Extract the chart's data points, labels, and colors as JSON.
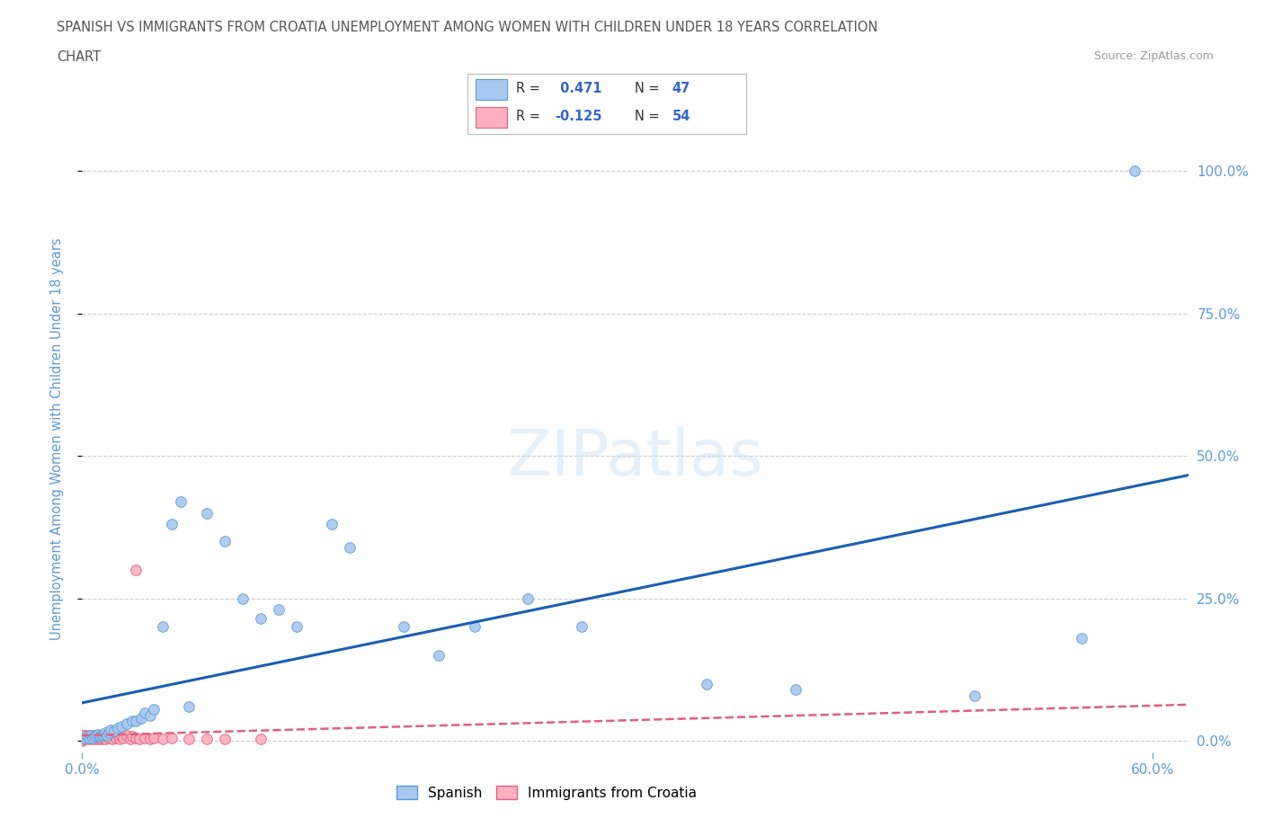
{
  "title_line1": "SPANISH VS IMMIGRANTS FROM CROATIA UNEMPLOYMENT AMONG WOMEN WITH CHILDREN UNDER 18 YEARS CORRELATION",
  "title_line2": "CHART",
  "source": "Source: ZipAtlas.com",
  "ylabel": "Unemployment Among Women with Children Under 18 years",
  "ytick_values": [
    0.0,
    0.25,
    0.5,
    0.75,
    1.0
  ],
  "ytick_labels": [
    "0.0%",
    "25.0%",
    "50.0%",
    "75.0%",
    "100.0%"
  ],
  "xlim": [
    0.0,
    0.62
  ],
  "ylim": [
    -0.02,
    1.08
  ],
  "spanish": {
    "name": "Spanish",
    "color": "#a8c8f0",
    "edge_color": "#5b9bd5",
    "line_color": "#1a5fb0",
    "R": 0.471,
    "N": 47,
    "x": [
      0.001,
      0.003,
      0.004,
      0.005,
      0.006,
      0.007,
      0.008,
      0.009,
      0.01,
      0.011,
      0.012,
      0.013,
      0.014,
      0.015,
      0.016,
      0.018,
      0.02,
      0.022,
      0.025,
      0.028,
      0.03,
      0.033,
      0.035,
      0.038,
      0.04,
      0.045,
      0.05,
      0.055,
      0.06,
      0.07,
      0.08,
      0.09,
      0.1,
      0.11,
      0.12,
      0.14,
      0.15,
      0.18,
      0.2,
      0.22,
      0.25,
      0.28,
      0.35,
      0.4,
      0.5,
      0.56,
      0.59
    ],
    "y": [
      0.005,
      0.008,
      0.005,
      0.01,
      0.005,
      0.008,
      0.01,
      0.012,
      0.008,
      0.01,
      0.012,
      0.015,
      0.01,
      0.015,
      0.02,
      0.018,
      0.022,
      0.025,
      0.03,
      0.035,
      0.035,
      0.04,
      0.05,
      0.045,
      0.055,
      0.2,
      0.38,
      0.42,
      0.06,
      0.4,
      0.35,
      0.25,
      0.215,
      0.23,
      0.2,
      0.38,
      0.34,
      0.2,
      0.15,
      0.2,
      0.25,
      0.2,
      0.1,
      0.09,
      0.08,
      0.18,
      1.0
    ]
  },
  "croatia": {
    "name": "Immigrants from Croatia",
    "color": "#ffb0c0",
    "edge_color": "#e06080",
    "line_color": "#e06080",
    "R": -0.125,
    "N": 54,
    "x": [
      0.0,
      0.0,
      0.0,
      0.001,
      0.001,
      0.002,
      0.002,
      0.003,
      0.003,
      0.004,
      0.004,
      0.005,
      0.005,
      0.006,
      0.006,
      0.007,
      0.007,
      0.008,
      0.008,
      0.009,
      0.009,
      0.01,
      0.01,
      0.011,
      0.011,
      0.012,
      0.012,
      0.013,
      0.014,
      0.015,
      0.016,
      0.017,
      0.018,
      0.019,
      0.02,
      0.021,
      0.022,
      0.023,
      0.025,
      0.027,
      0.028,
      0.03,
      0.032,
      0.035,
      0.038,
      0.04,
      0.045,
      0.05,
      0.06,
      0.07,
      0.08,
      0.1,
      0.03,
      0.0
    ],
    "y": [
      0.0,
      0.005,
      0.01,
      0.003,
      0.008,
      0.005,
      0.01,
      0.003,
      0.008,
      0.005,
      0.01,
      0.003,
      0.008,
      0.005,
      0.01,
      0.003,
      0.008,
      0.005,
      0.01,
      0.003,
      0.008,
      0.005,
      0.01,
      0.003,
      0.008,
      0.005,
      0.01,
      0.003,
      0.008,
      0.005,
      0.01,
      0.003,
      0.008,
      0.005,
      0.01,
      0.003,
      0.008,
      0.005,
      0.01,
      0.003,
      0.008,
      0.005,
      0.003,
      0.005,
      0.003,
      0.005,
      0.003,
      0.005,
      0.003,
      0.003,
      0.003,
      0.003,
      0.3,
      0.01
    ]
  },
  "watermark": "ZIPatlas",
  "background_color": "#ffffff",
  "grid_color": "#cccccc",
  "title_color": "#555555",
  "axis_color": "#5b9bd5",
  "legend_R_color": "#3366cc",
  "legend_N_color": "#3366cc"
}
